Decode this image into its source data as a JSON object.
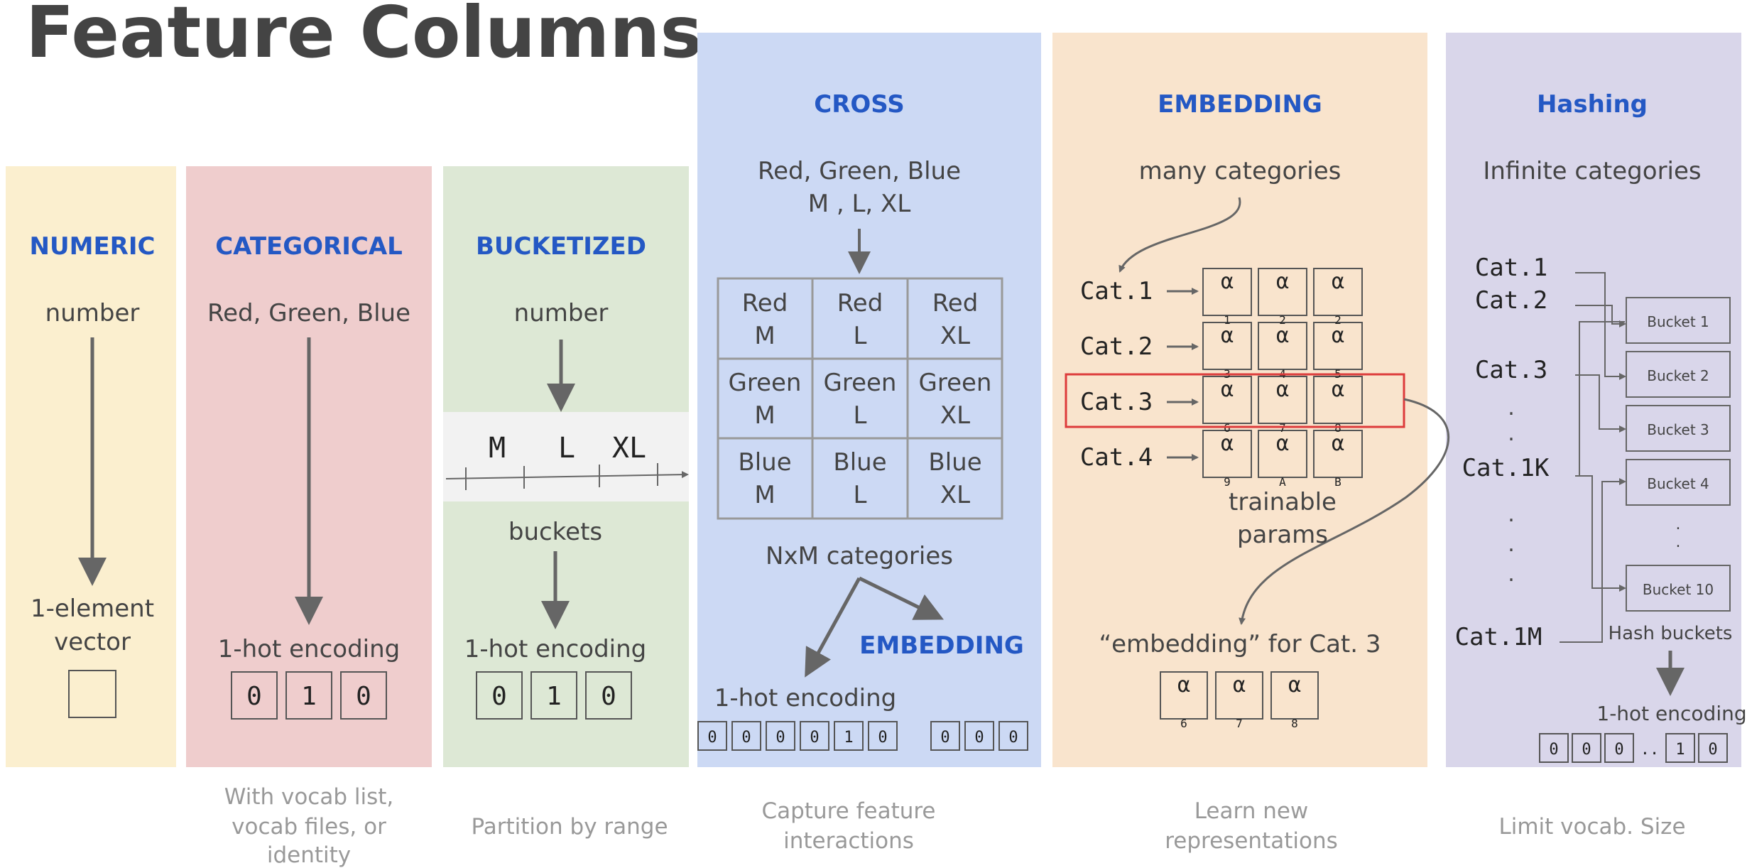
{
  "title": "Feature Columns",
  "colors": {
    "numeric": "#fbefcf",
    "categorical": "#efcdcd",
    "bucketized": "#dde8d5",
    "cross": "#ccd9f4",
    "embedding": "#f9e4cd",
    "hashing": "#d9d6ea",
    "heading": "#2458c4",
    "highlight": "#dd3b3b"
  },
  "numeric": {
    "heading": "NUMERIC",
    "input": "number",
    "output_line1": "1-element",
    "output_line2": "vector"
  },
  "categorical": {
    "heading": "CATEGORICAL",
    "input": "Red, Green, Blue",
    "output": "1-hot encoding",
    "cells": [
      "0",
      "1",
      "0"
    ],
    "caption": [
      "With vocab list,",
      "vocab files, or",
      "identity"
    ]
  },
  "bucketized": {
    "heading": "BUCKETIZED",
    "input": "number",
    "ranges": [
      "M",
      "L",
      "XL"
    ],
    "mid": "buckets",
    "output": "1-hot encoding",
    "cells": [
      "0",
      "1",
      "0"
    ],
    "caption": "Partition by range"
  },
  "cross": {
    "heading": "CROSS",
    "input_line1": "Red, Green, Blue",
    "input_line2": "M ,    L,    XL",
    "grid": [
      [
        "Red",
        "M"
      ],
      [
        "Red",
        "L"
      ],
      [
        "Red",
        "XL"
      ],
      [
        "Green",
        "M"
      ],
      [
        "Green",
        "L"
      ],
      [
        "Green",
        "XL"
      ],
      [
        "Blue",
        "M"
      ],
      [
        "Blue",
        "L"
      ],
      [
        "Blue",
        "XL"
      ]
    ],
    "mid": "NxM categories",
    "embedding_label": "EMBEDDING",
    "output": "1-hot encoding",
    "cells_a": [
      "0",
      "0",
      "0",
      "0",
      "1",
      "0"
    ],
    "cells_b": [
      "0",
      "0",
      "0"
    ],
    "caption": [
      "Capture feature",
      "interactions"
    ]
  },
  "embedding": {
    "heading": "EMBEDDING",
    "input": "many categories",
    "cats": [
      "Cat.1",
      "Cat.2",
      "Cat.3",
      "Cat.4"
    ],
    "alpha": "α",
    "subs": [
      "1",
      "2",
      "2",
      "3",
      "4",
      "5",
      "6",
      "7",
      "8",
      "9",
      "A",
      "B"
    ],
    "mid_line1": "trainable",
    "mid_line2": "params",
    "output": "“embedding” for Cat. 3",
    "out_subs": [
      "6",
      "7",
      "8"
    ],
    "caption": [
      "Learn new",
      "representations"
    ]
  },
  "hashing": {
    "heading": "Hashing",
    "input": "Infinite categories",
    "cats": [
      "Cat.1",
      "Cat.2",
      "Cat.3",
      "Cat.1K",
      "Cat.1M"
    ],
    "buckets": [
      "Bucket 1",
      "Bucket 2",
      "Bucket 3",
      "Bucket 4",
      "Bucket 10"
    ],
    "dots": ".",
    "buckets_label": "Hash buckets",
    "output": "1-hot encoding",
    "cells": [
      "0",
      "0",
      "0",
      "..",
      "1",
      "0"
    ],
    "caption": "Limit vocab. Size"
  }
}
